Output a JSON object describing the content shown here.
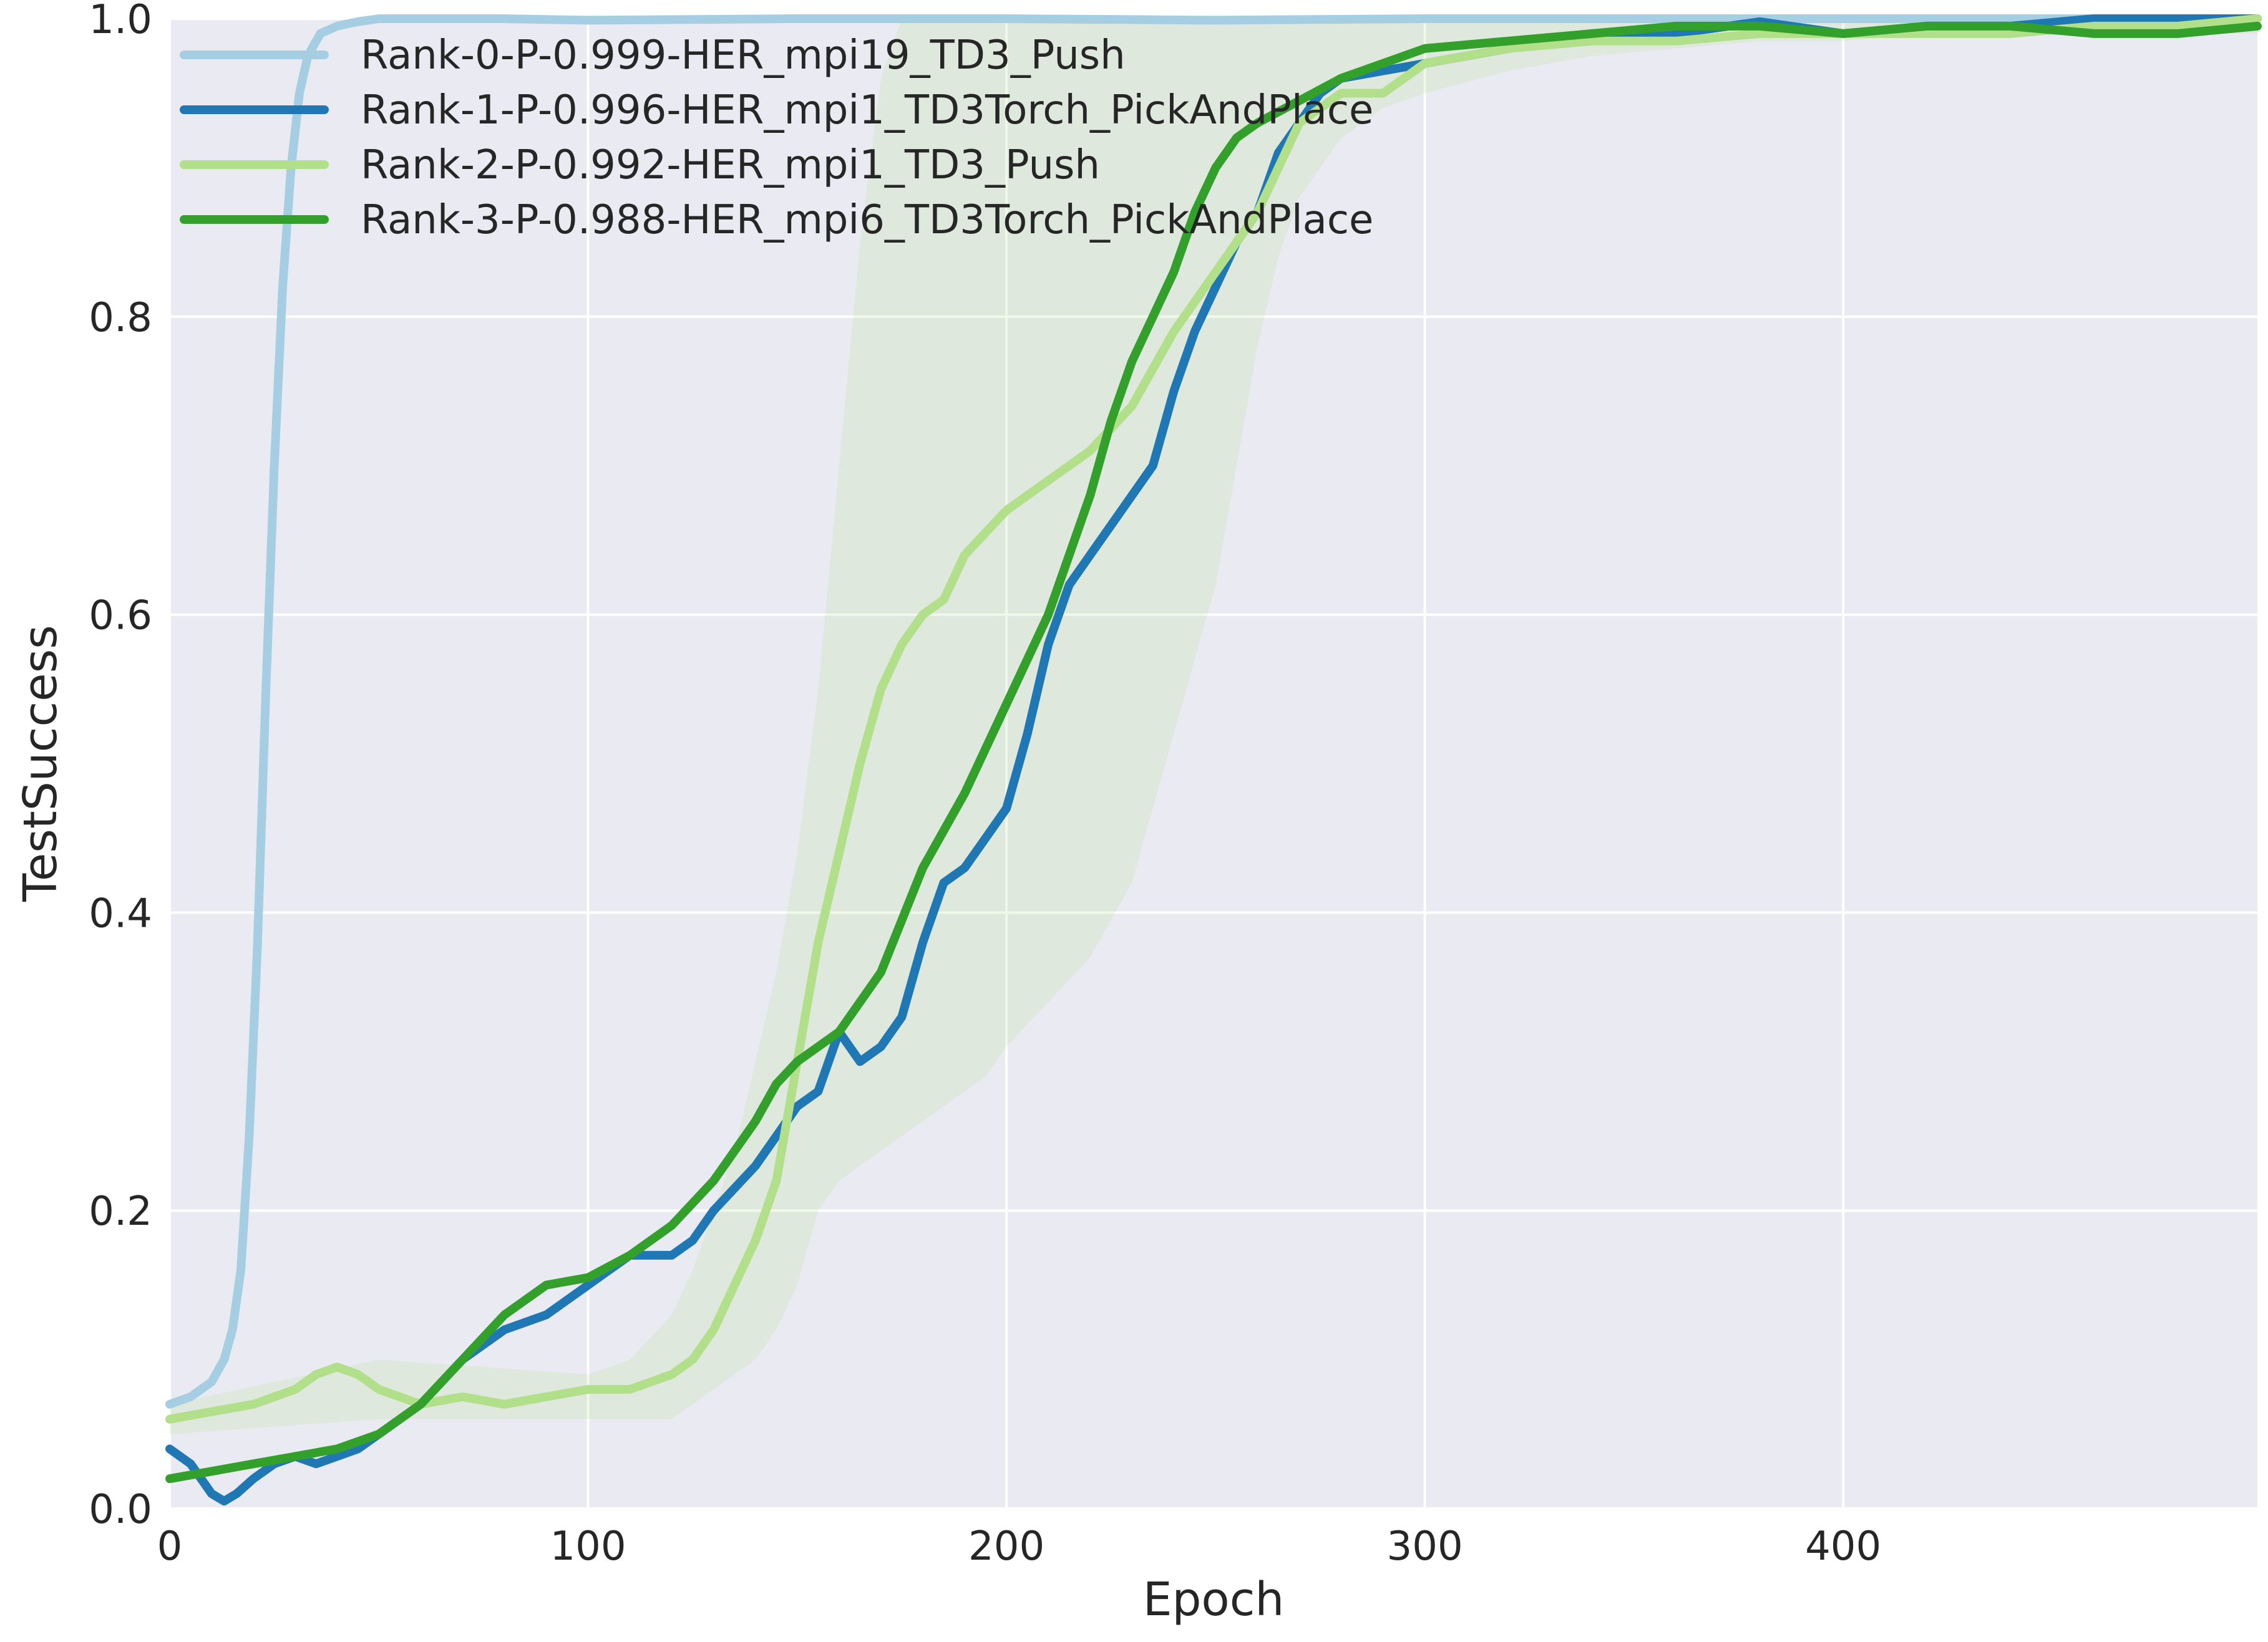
{
  "chart_data": {
    "type": "line",
    "title": "",
    "xlabel": "Epoch",
    "ylabel": "TestSuccess",
    "xlim": [
      0,
      499
    ],
    "ylim": [
      0,
      1.0
    ],
    "x_ticks": [
      0,
      100,
      200,
      300,
      400
    ],
    "y_ticks": [
      0.0,
      0.2,
      0.4,
      0.6,
      0.8,
      1.0
    ],
    "x_tick_labels": [
      "0",
      "100",
      "200",
      "300",
      "400"
    ],
    "y_tick_labels": [
      "0.0",
      "0.2",
      "0.4",
      "0.6",
      "0.8",
      "1.0"
    ],
    "grid": true,
    "legend_position": "top-left",
    "background_color": "#eaeaf2",
    "series": [
      {
        "name": "Rank-0-P-0.999-HER_mpi19_TD3_Push",
        "color": "#a6cee3",
        "x": [
          0,
          5,
          10,
          13,
          15,
          17,
          19,
          21,
          23,
          25,
          27,
          29,
          31,
          33,
          36,
          40,
          45,
          50,
          60,
          80,
          100,
          150,
          200,
          250,
          300,
          350,
          400,
          450,
          499
        ],
        "y": [
          0.07,
          0.075,
          0.085,
          0.1,
          0.12,
          0.16,
          0.25,
          0.38,
          0.55,
          0.7,
          0.82,
          0.9,
          0.95,
          0.975,
          0.99,
          0.995,
          0.998,
          1.0,
          1.0,
          1.0,
          0.999,
          1.0,
          1.0,
          0.999,
          1.0,
          1.0,
          1.0,
          1.0,
          1.0
        ]
      },
      {
        "name": "Rank-1-P-0.996-HER_mpi1_TD3Torch_PickAndPlace",
        "color": "#1f78b4",
        "x": [
          0,
          5,
          10,
          13,
          16,
          20,
          25,
          30,
          35,
          40,
          45,
          50,
          55,
          60,
          70,
          80,
          90,
          100,
          110,
          120,
          125,
          130,
          140,
          150,
          155,
          160,
          165,
          170,
          175,
          180,
          185,
          190,
          195,
          200,
          205,
          210,
          215,
          220,
          225,
          230,
          235,
          240,
          245,
          250,
          255,
          260,
          265,
          270,
          275,
          280,
          290,
          300,
          320,
          340,
          360,
          380,
          400,
          420,
          440,
          460,
          480,
          499
        ],
        "y": [
          0.04,
          0.03,
          0.01,
          0.005,
          0.01,
          0.02,
          0.03,
          0.035,
          0.03,
          0.035,
          0.04,
          0.05,
          0.06,
          0.07,
          0.1,
          0.12,
          0.13,
          0.15,
          0.17,
          0.17,
          0.18,
          0.2,
          0.23,
          0.27,
          0.28,
          0.32,
          0.3,
          0.31,
          0.33,
          0.38,
          0.42,
          0.43,
          0.45,
          0.47,
          0.52,
          0.58,
          0.62,
          0.64,
          0.66,
          0.68,
          0.7,
          0.75,
          0.79,
          0.82,
          0.85,
          0.87,
          0.91,
          0.93,
          0.95,
          0.96,
          0.965,
          0.97,
          0.98,
          0.99,
          0.99,
          0.998,
          0.99,
          0.995,
          0.995,
          1.0,
          1.0,
          1.0
        ]
      },
      {
        "name": "Rank-2-P-0.992-HER_mpi1_TD3_Push",
        "color": "#b2df8a",
        "x": [
          0,
          10,
          20,
          30,
          35,
          40,
          45,
          50,
          60,
          70,
          80,
          90,
          100,
          110,
          120,
          125,
          130,
          135,
          140,
          145,
          150,
          155,
          160,
          165,
          170,
          175,
          180,
          185,
          190,
          195,
          200,
          210,
          220,
          230,
          240,
          250,
          255,
          260,
          265,
          270,
          280,
          290,
          300,
          320,
          340,
          360,
          380,
          400,
          420,
          440,
          460,
          480,
          499
        ],
        "y": [
          0.06,
          0.065,
          0.07,
          0.08,
          0.09,
          0.095,
          0.09,
          0.08,
          0.07,
          0.075,
          0.07,
          0.075,
          0.08,
          0.08,
          0.09,
          0.1,
          0.12,
          0.15,
          0.18,
          0.22,
          0.3,
          0.38,
          0.44,
          0.5,
          0.55,
          0.58,
          0.6,
          0.61,
          0.64,
          0.655,
          0.67,
          0.69,
          0.71,
          0.74,
          0.79,
          0.83,
          0.85,
          0.87,
          0.9,
          0.93,
          0.95,
          0.95,
          0.97,
          0.98,
          0.985,
          0.985,
          0.99,
          0.99,
          0.99,
          0.99,
          0.995,
          0.995,
          1.0
        ]
      },
      {
        "name": "Rank-3-P-0.988-HER_mpi6_TD3Torch_PickAndPlace",
        "color": "#33a02c",
        "x": [
          0,
          10,
          20,
          30,
          40,
          50,
          60,
          70,
          80,
          90,
          100,
          110,
          120,
          130,
          140,
          145,
          150,
          155,
          160,
          170,
          180,
          190,
          200,
          210,
          220,
          225,
          230,
          235,
          240,
          245,
          250,
          255,
          260,
          270,
          280,
          290,
          300,
          320,
          340,
          360,
          380,
          400,
          420,
          440,
          460,
          480,
          499
        ],
        "y": [
          0.02,
          0.025,
          0.03,
          0.035,
          0.04,
          0.05,
          0.07,
          0.1,
          0.13,
          0.15,
          0.155,
          0.17,
          0.19,
          0.22,
          0.26,
          0.285,
          0.3,
          0.31,
          0.32,
          0.36,
          0.43,
          0.48,
          0.54,
          0.6,
          0.68,
          0.73,
          0.77,
          0.8,
          0.83,
          0.87,
          0.9,
          0.92,
          0.93,
          0.945,
          0.96,
          0.97,
          0.98,
          0.985,
          0.99,
          0.995,
          0.995,
          0.99,
          0.995,
          0.995,
          0.99,
          0.99,
          0.995
        ]
      }
    ],
    "bands": [
      {
        "series": "Rank-2-P-0.992-HER_mpi1_TD3_Push",
        "color": "#b2df8a",
        "x": [
          0,
          50,
          100,
          110,
          120,
          125,
          130,
          135,
          140,
          145,
          150,
          155,
          160,
          165,
          170,
          175,
          180,
          185,
          190,
          195,
          200,
          210,
          220,
          230,
          240,
          250,
          255,
          260,
          265,
          270,
          280,
          290,
          300,
          320,
          340,
          360,
          380,
          400,
          420,
          440,
          460,
          480,
          499
        ],
        "upper": [
          0.07,
          0.1,
          0.09,
          0.1,
          0.13,
          0.16,
          0.2,
          0.24,
          0.3,
          0.36,
          0.44,
          0.55,
          0.7,
          0.85,
          0.96,
          1.0,
          1.0,
          1.0,
          1.0,
          1.0,
          1.0,
          1.0,
          1.0,
          1.0,
          1.0,
          1.0,
          1.0,
          1.0,
          1.0,
          1.0,
          1.0,
          1.0,
          1.0,
          1.0,
          1.0,
          1.0,
          1.0,
          1.0,
          1.0,
          1.0,
          1.0,
          1.0,
          1.0
        ],
        "lower": [
          0.05,
          0.06,
          0.06,
          0.06,
          0.06,
          0.07,
          0.08,
          0.09,
          0.1,
          0.12,
          0.15,
          0.2,
          0.22,
          0.23,
          0.24,
          0.25,
          0.26,
          0.27,
          0.28,
          0.29,
          0.31,
          0.34,
          0.37,
          0.42,
          0.52,
          0.62,
          0.7,
          0.78,
          0.84,
          0.88,
          0.92,
          0.94,
          0.95,
          0.965,
          0.975,
          0.98,
          0.985,
          0.985,
          0.99,
          0.99,
          0.99,
          0.99,
          0.99
        ]
      }
    ]
  }
}
